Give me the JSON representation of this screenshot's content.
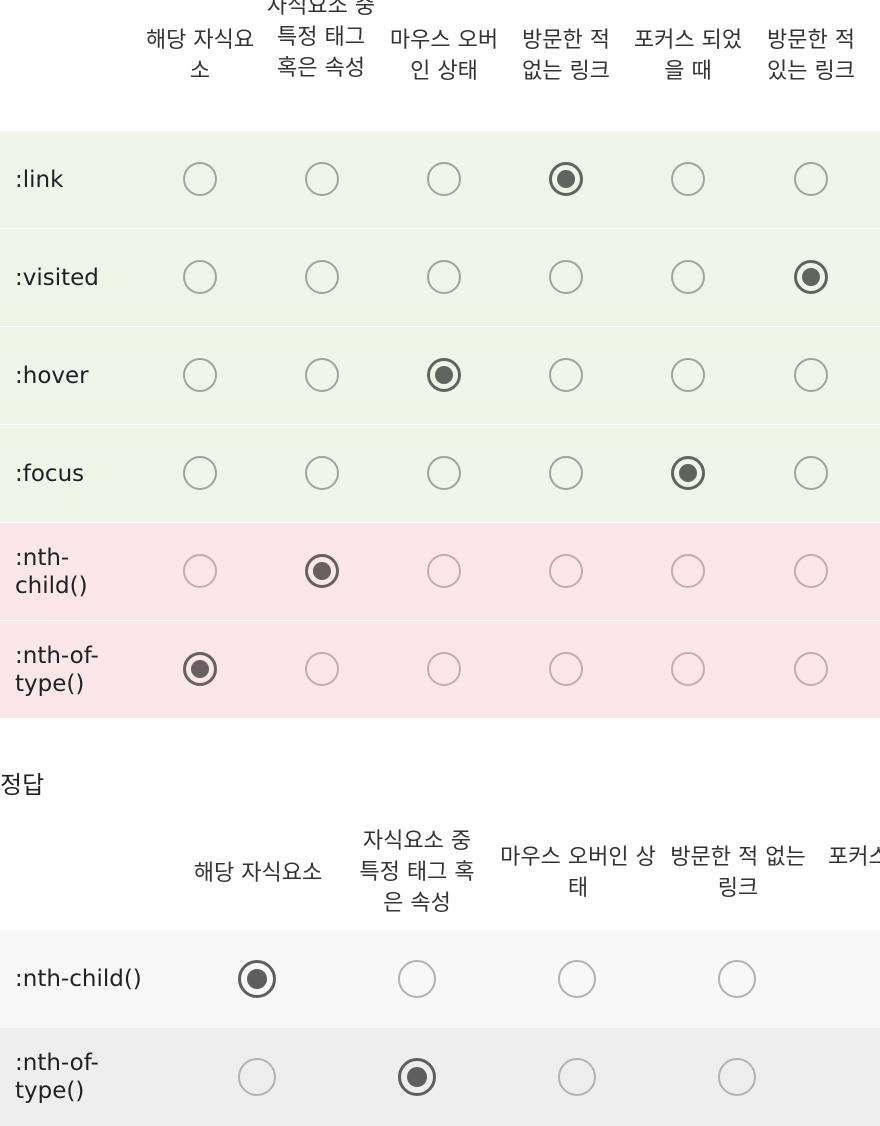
{
  "quiz": {
    "columns": [
      "해당 자식요소",
      "자식요소 중 특정 태그 혹은 속성",
      "마우스 오버인 상태",
      "방문한 적 없는 링크",
      "포커스 되었을 때",
      "방문한 적 있는 링크"
    ],
    "rows": [
      {
        "label": ":link",
        "selected": 3,
        "theme": "green"
      },
      {
        "label": ":visited",
        "selected": 5,
        "theme": "green"
      },
      {
        "label": ":hover",
        "selected": 2,
        "theme": "green"
      },
      {
        "label": ":focus",
        "selected": 4,
        "theme": "green"
      },
      {
        "label": ":nth-child()",
        "selected": 1,
        "theme": "red"
      },
      {
        "label": ":nth-of-type()",
        "selected": 0,
        "theme": "red"
      }
    ]
  },
  "answer": {
    "title": "정답",
    "columns": [
      "해당 자식요소",
      "자식요소 중 특정 태그 혹은 속성",
      "마우스 오버인 상태",
      "방문한 적 없는 링크",
      "포커스"
    ],
    "rows": [
      {
        "label": ":nth-child()",
        "selected": 0
      },
      {
        "label": ":nth-of-type()",
        "selected": 1
      }
    ]
  },
  "colors": {
    "correct_row": "#eef6e9",
    "incorrect_row": "#fbe7e7",
    "radio_checked": "#5f645d"
  }
}
